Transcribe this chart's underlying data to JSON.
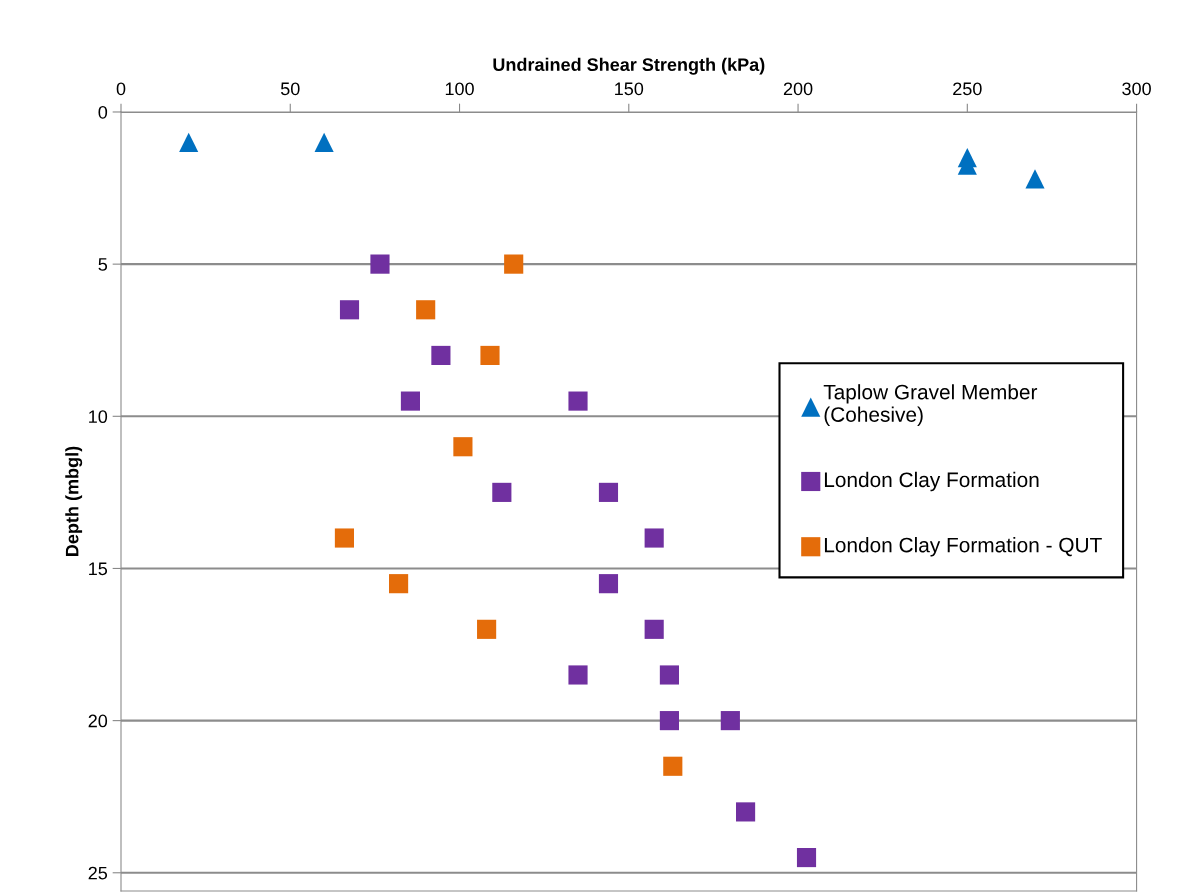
{
  "chart_data": {
    "type": "scatter",
    "xlabel": "Undrained Shear Strength (kPa)",
    "ylabel": "Depth (mbgl)",
    "xlim": [
      0,
      300
    ],
    "xticks": [
      0,
      50,
      100,
      150,
      200,
      250,
      300
    ],
    "ylim": [
      25.6,
      0
    ],
    "yticks": [
      0,
      5,
      10,
      15,
      20,
      25
    ],
    "grid": "y",
    "legend": "right",
    "series": [
      {
        "name": "Taplow Gravel Member\n(Cohesive)",
        "color": "#0070c0",
        "marker": "triangle",
        "x": [
          20,
          60,
          250,
          250,
          270
        ],
        "values": [
          1,
          1,
          1.5,
          1.75,
          2.2
        ]
      },
      {
        "name": "London Clay Formation",
        "color": "#7030a0",
        "marker": "square",
        "x": [
          76.5,
          67.5,
          94.5,
          85.5,
          135,
          112.5,
          144,
          157.5,
          144,
          157.5,
          135,
          162,
          162,
          180,
          184.5,
          202.5
        ],
        "values": [
          5,
          6.5,
          8,
          9.5,
          9.5,
          12.5,
          12.5,
          14,
          15.5,
          17,
          18.5,
          18.5,
          20,
          20,
          23,
          24.5
        ]
      },
      {
        "name": "London Clay Formation - QUT",
        "color": "#e46c0a",
        "marker": "square",
        "x": [
          116,
          90,
          109,
          101,
          66,
          82,
          108,
          163
        ],
        "values": [
          5,
          6.5,
          8,
          11,
          14,
          15.5,
          17,
          21.5
        ]
      }
    ]
  }
}
